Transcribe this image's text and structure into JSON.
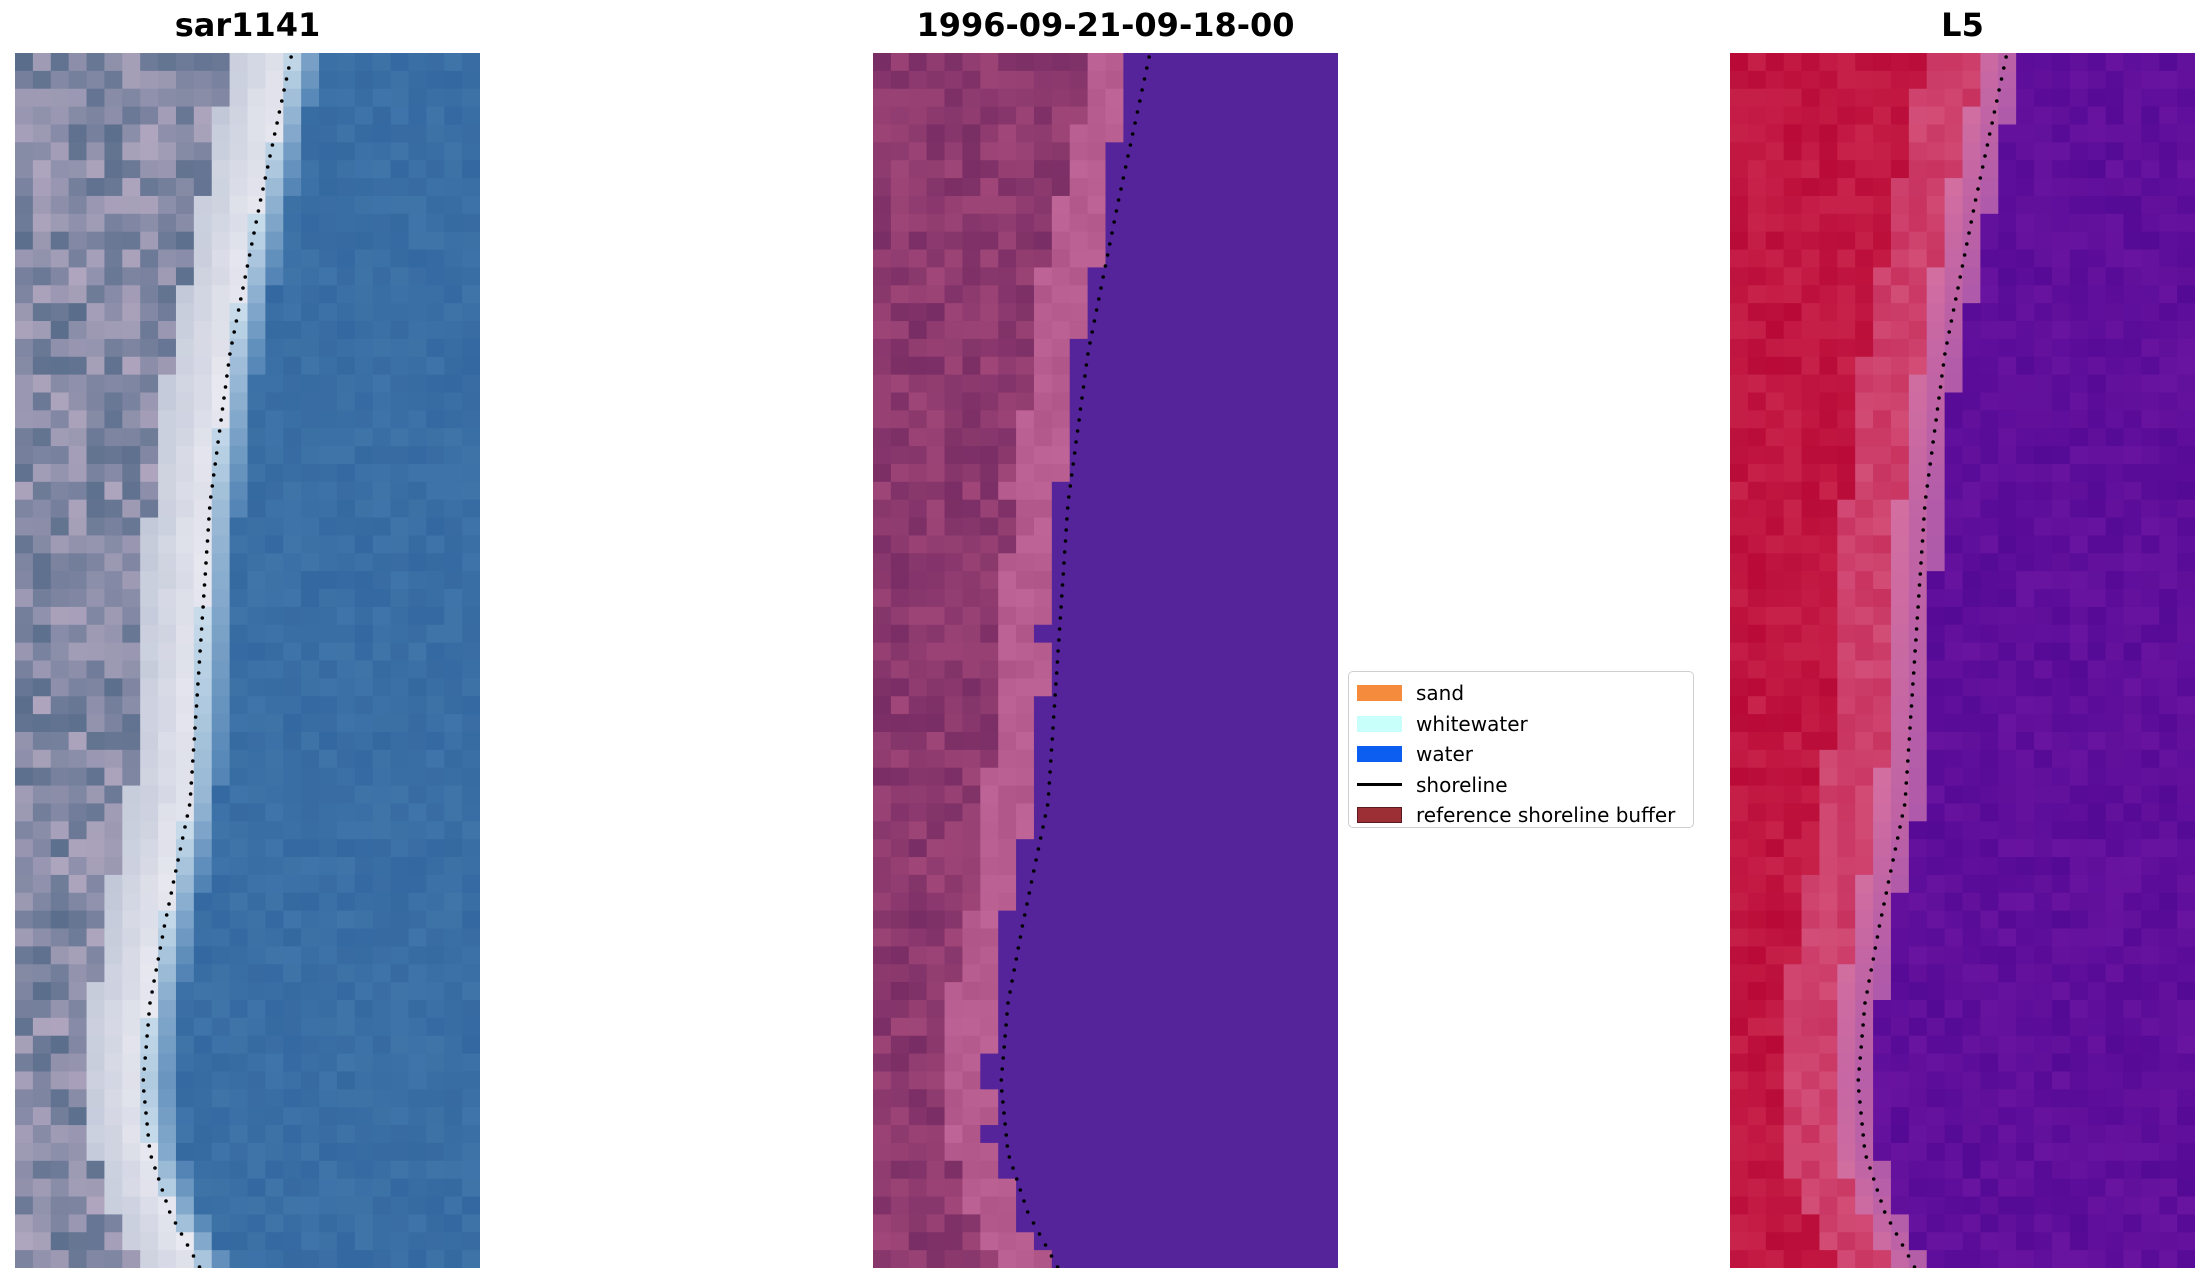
{
  "panels": {
    "rgb": {
      "title": "sar1141"
    },
    "classified": {
      "title": "1996-09-21-09-18-00"
    },
    "index": {
      "title": "L5"
    }
  },
  "legend": {
    "items": [
      {
        "label": "sand",
        "color": "#f58b3c",
        "kind": "patch"
      },
      {
        "label": "whitewater",
        "color": "#c8fffa",
        "kind": "patch"
      },
      {
        "label": "water",
        "color": "#0b5ef0",
        "kind": "patch"
      },
      {
        "label": "shoreline",
        "color": "#000000",
        "kind": "line"
      },
      {
        "label": "reference shoreline buffer",
        "color": "#9b2f35",
        "kind": "patch"
      }
    ]
  },
  "colors": {
    "rgb_water": "#3a6ea8",
    "rgb_whitewater": "#e8eef5",
    "rgb_land": "#8e8aa5",
    "classified_water": "#55249a",
    "classified_land": "#8f3f75",
    "classified_beach": "#c16a9a",
    "index_land": "#c01842",
    "index_water": "#6a18a0",
    "shoreline_dots": "#000000"
  }
}
